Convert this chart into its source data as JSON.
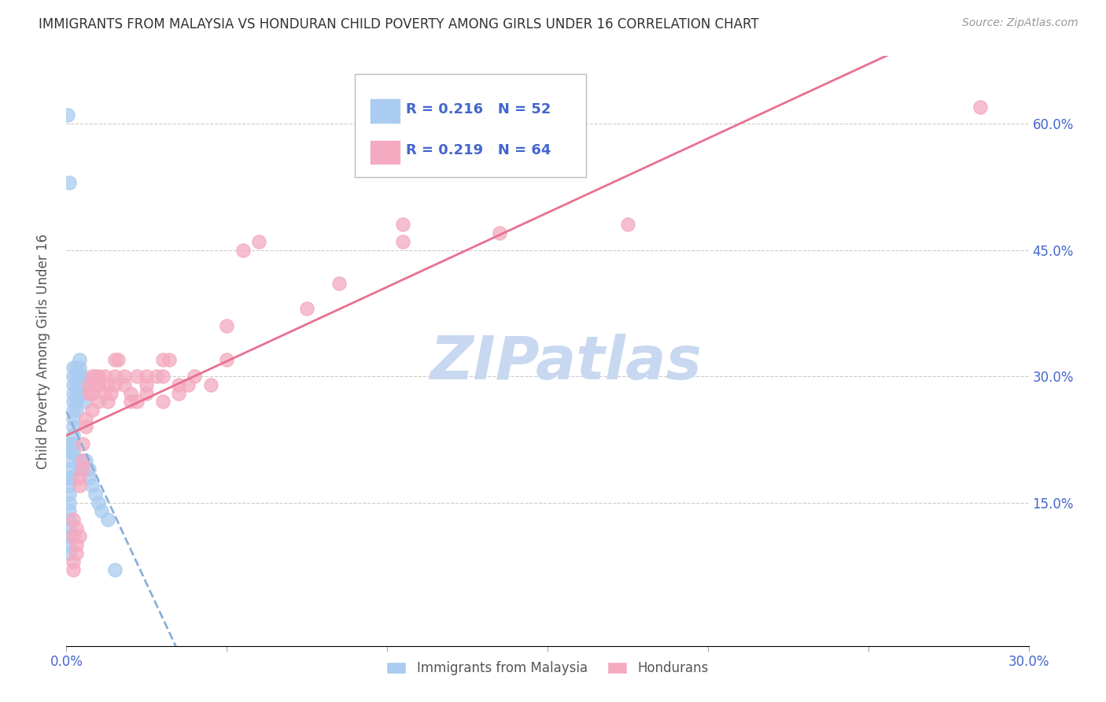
{
  "title": "IMMIGRANTS FROM MALAYSIA VS HONDURAN CHILD POVERTY AMONG GIRLS UNDER 16 CORRELATION CHART",
  "source": "Source: ZipAtlas.com",
  "ylabel": "Child Poverty Among Girls Under 16",
  "ytick_labels": [
    "15.0%",
    "30.0%",
    "45.0%",
    "60.0%"
  ],
  "ytick_values": [
    0.15,
    0.3,
    0.45,
    0.6
  ],
  "xlim": [
    0.0,
    0.3
  ],
  "ylim": [
    -0.02,
    0.68
  ],
  "legend_entries": [
    {
      "label": "Immigrants from Malaysia",
      "R": "0.216",
      "N": "52",
      "color": "#aaccf0"
    },
    {
      "label": "Hondurans",
      "R": "0.219",
      "N": "64",
      "color": "#f4aac0"
    }
  ],
  "watermark": "ZIPatlas",
  "malaysia_x": [
    0.0005,
    0.001,
    0.001,
    0.001,
    0.001,
    0.001,
    0.001,
    0.001,
    0.001,
    0.001,
    0.001,
    0.001,
    0.001,
    0.0015,
    0.0015,
    0.0015,
    0.0015,
    0.002,
    0.002,
    0.002,
    0.002,
    0.002,
    0.002,
    0.002,
    0.002,
    0.002,
    0.002,
    0.002,
    0.003,
    0.003,
    0.003,
    0.003,
    0.003,
    0.003,
    0.004,
    0.004,
    0.004,
    0.004,
    0.004,
    0.005,
    0.005,
    0.005,
    0.006,
    0.006,
    0.007,
    0.007,
    0.008,
    0.009,
    0.01,
    0.011,
    0.013,
    0.015
  ],
  "malaysia_y": [
    0.61,
    0.53,
    0.2,
    0.18,
    0.17,
    0.16,
    0.15,
    0.14,
    0.13,
    0.12,
    0.11,
    0.1,
    0.09,
    0.22,
    0.21,
    0.19,
    0.18,
    0.31,
    0.3,
    0.29,
    0.28,
    0.27,
    0.26,
    0.25,
    0.24,
    0.23,
    0.22,
    0.21,
    0.31,
    0.3,
    0.29,
    0.28,
    0.27,
    0.26,
    0.32,
    0.31,
    0.3,
    0.2,
    0.19,
    0.3,
    0.29,
    0.28,
    0.27,
    0.2,
    0.19,
    0.18,
    0.17,
    0.16,
    0.15,
    0.14,
    0.13,
    0.07
  ],
  "honduran_x": [
    0.285,
    0.175,
    0.135,
    0.105,
    0.105,
    0.085,
    0.075,
    0.06,
    0.055,
    0.05,
    0.05,
    0.045,
    0.04,
    0.038,
    0.035,
    0.035,
    0.032,
    0.03,
    0.03,
    0.03,
    0.028,
    0.025,
    0.025,
    0.025,
    0.022,
    0.022,
    0.02,
    0.02,
    0.018,
    0.018,
    0.016,
    0.015,
    0.015,
    0.015,
    0.014,
    0.013,
    0.013,
    0.012,
    0.012,
    0.01,
    0.01,
    0.01,
    0.009,
    0.009,
    0.008,
    0.008,
    0.008,
    0.007,
    0.007,
    0.006,
    0.006,
    0.005,
    0.005,
    0.005,
    0.004,
    0.004,
    0.004,
    0.003,
    0.003,
    0.003,
    0.002,
    0.002,
    0.002,
    0.002
  ],
  "honduran_y": [
    0.62,
    0.48,
    0.47,
    0.48,
    0.46,
    0.41,
    0.38,
    0.46,
    0.45,
    0.36,
    0.32,
    0.29,
    0.3,
    0.29,
    0.29,
    0.28,
    0.32,
    0.32,
    0.3,
    0.27,
    0.3,
    0.3,
    0.29,
    0.28,
    0.3,
    0.27,
    0.28,
    0.27,
    0.3,
    0.29,
    0.32,
    0.32,
    0.3,
    0.29,
    0.28,
    0.29,
    0.27,
    0.28,
    0.3,
    0.3,
    0.29,
    0.27,
    0.3,
    0.29,
    0.28,
    0.26,
    0.3,
    0.29,
    0.28,
    0.25,
    0.24,
    0.22,
    0.2,
    0.19,
    0.18,
    0.17,
    0.11,
    0.12,
    0.1,
    0.09,
    0.13,
    0.11,
    0.08,
    0.07
  ],
  "malaysia_line_color": "#8ab0d8",
  "honduran_line_color": "#e87090",
  "malaysia_scatter_color": "#aaccf0",
  "honduran_scatter_color": "#f4aac0",
  "grid_color": "#cccccc",
  "title_color": "#333333",
  "axis_label_color": "#555555",
  "tick_color": "#4466cc",
  "watermark_color": "#c8d8f0",
  "title_fontsize": 12,
  "source_fontsize": 10
}
